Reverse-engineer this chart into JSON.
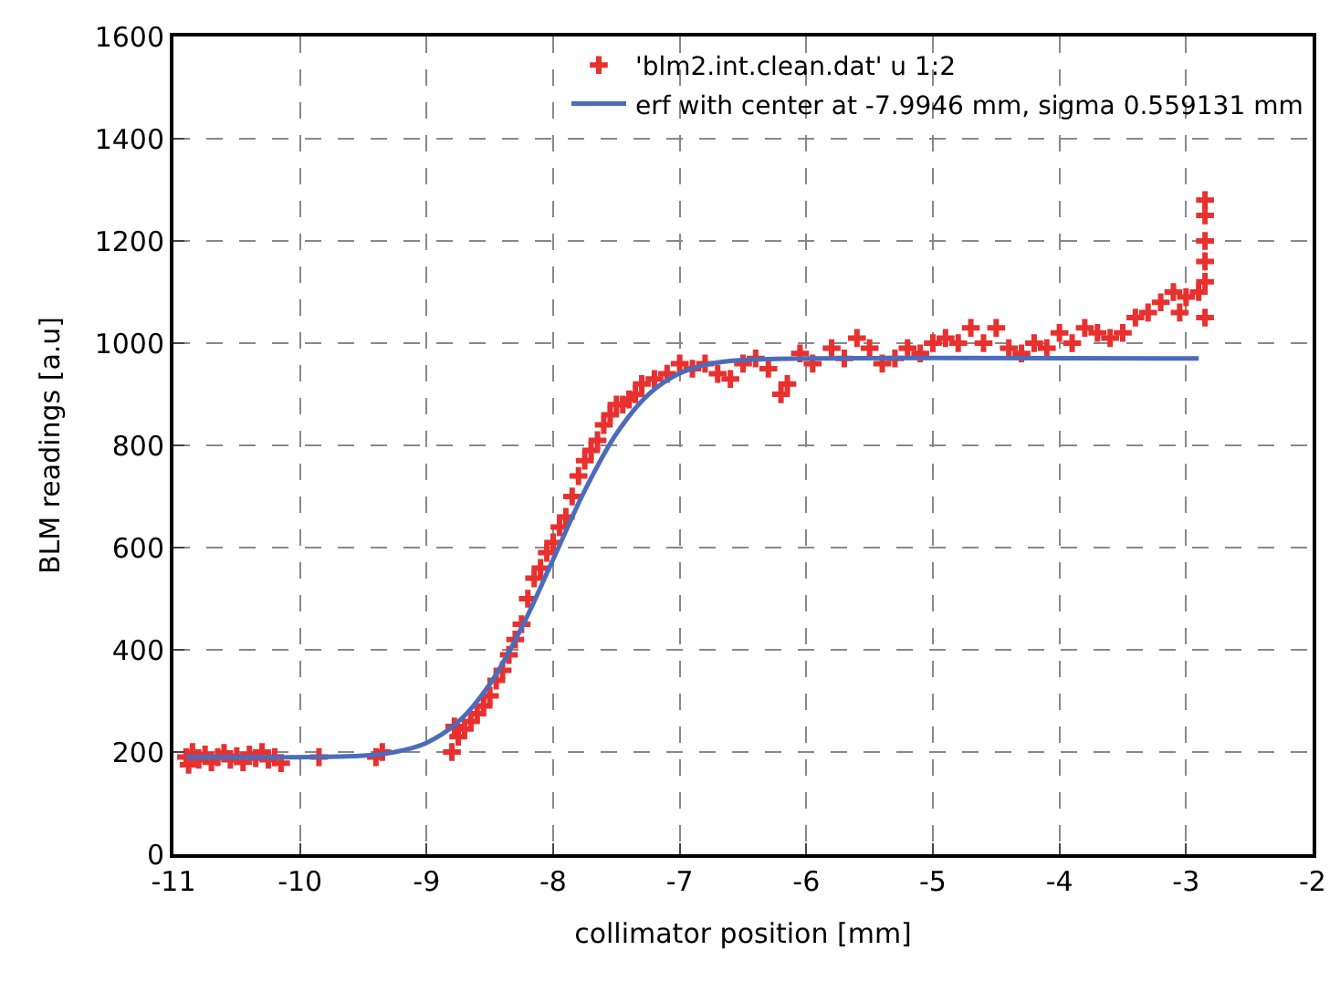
{
  "chart_data": {
    "type": "scatter",
    "xlabel": "collimator position [mm]",
    "ylabel": "BLM readings [a.u]",
    "xlim": [
      -11,
      -2
    ],
    "xticks": [
      -11,
      -10,
      -9,
      -8,
      -7,
      -6,
      -5,
      -4,
      -3,
      -2
    ],
    "ylim": [
      0,
      1600
    ],
    "yticks": [
      0,
      200,
      400,
      600,
      800,
      1000,
      1200,
      1400,
      1600
    ],
    "grid": true,
    "legend": "top right",
    "series": [
      {
        "name": "'blm2.int.clean.dat' u 1:2",
        "color": "#e8312f",
        "marker": "cross",
        "x": [
          -10.9,
          -10.88,
          -10.85,
          -10.8,
          -10.75,
          -10.7,
          -10.65,
          -10.6,
          -10.55,
          -10.5,
          -10.45,
          -10.4,
          -10.35,
          -10.3,
          -10.25,
          -10.2,
          -10.15,
          -9.85,
          -9.4,
          -9.35,
          -8.8,
          -8.78,
          -8.75,
          -8.7,
          -8.65,
          -8.6,
          -8.55,
          -8.5,
          -8.45,
          -8.4,
          -8.35,
          -8.3,
          -8.25,
          -8.2,
          -8.15,
          -8.1,
          -8.05,
          -8.0,
          -7.95,
          -7.9,
          -7.85,
          -7.8,
          -7.75,
          -7.7,
          -7.65,
          -7.6,
          -7.55,
          -7.5,
          -7.45,
          -7.4,
          -7.35,
          -7.3,
          -7.2,
          -7.1,
          -7.0,
          -6.9,
          -6.8,
          -6.7,
          -6.6,
          -6.5,
          -6.4,
          -6.3,
          -6.2,
          -6.15,
          -6.05,
          -5.95,
          -5.8,
          -5.7,
          -5.6,
          -5.5,
          -5.4,
          -5.3,
          -5.2,
          -5.1,
          -5.0,
          -4.9,
          -4.8,
          -4.7,
          -4.6,
          -4.5,
          -4.4,
          -4.3,
          -4.2,
          -4.1,
          -4.0,
          -3.9,
          -3.8,
          -3.7,
          -3.6,
          -3.5,
          -3.4,
          -3.3,
          -3.2,
          -3.1,
          -3.05,
          -3.0,
          -2.9,
          -2.85,
          -2.85,
          -2.85,
          -2.85,
          -2.85,
          -2.85
        ],
        "values": [
          190,
          175,
          200,
          185,
          195,
          180,
          190,
          198,
          185,
          192,
          180,
          195,
          188,
          200,
          185,
          190,
          178,
          190,
          190,
          200,
          200,
          250,
          230,
          245,
          260,
          275,
          290,
          310,
          340,
          360,
          390,
          420,
          450,
          500,
          540,
          560,
          590,
          610,
          640,
          660,
          700,
          740,
          770,
          790,
          810,
          840,
          860,
          880,
          880,
          890,
          900,
          920,
          930,
          940,
          960,
          950,
          960,
          940,
          930,
          960,
          970,
          950,
          900,
          920,
          980,
          960,
          990,
          970,
          1010,
          990,
          960,
          970,
          990,
          980,
          1000,
          1010,
          1000,
          1030,
          1000,
          1030,
          990,
          980,
          1000,
          990,
          1020,
          1000,
          1030,
          1020,
          1010,
          1020,
          1050,
          1060,
          1080,
          1100,
          1060,
          1090,
          1100,
          1050,
          1120,
          1160,
          1200,
          1250,
          1280
        ]
      },
      {
        "name": "erf with center at -7.9946 mm, sigma 0.559131 mm",
        "color": "#4a6cbb",
        "type": "line",
        "marker": "none",
        "x": [
          -10.9,
          -9.5,
          -9.25,
          -9.0,
          -8.75,
          -8.5,
          -8.25,
          -8.0,
          -7.75,
          -7.5,
          -7.25,
          -7.0,
          -6.75,
          -6.5,
          -6.0,
          -2.9
        ],
        "values": [
          190,
          193,
          200,
          218,
          259,
          333,
          443,
          577,
          712,
          823,
          899,
          941,
          960,
          967,
          970,
          970
        ]
      }
    ]
  }
}
